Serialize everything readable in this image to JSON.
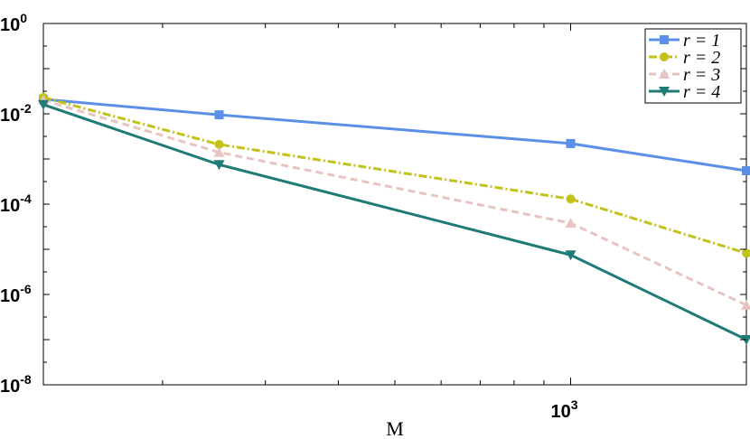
{
  "chart_data": {
    "type": "line",
    "title": "",
    "xlabel": "M",
    "ylabel": "",
    "xscale": "log",
    "yscale": "log",
    "xlim": [
      125,
      2000
    ],
    "ylim": [
      1e-08,
      1
    ],
    "x_ticks": [
      {
        "value": 1000,
        "base": "10",
        "exp": "3"
      }
    ],
    "y_ticks": [
      {
        "value": 1,
        "base": "10",
        "exp": "0"
      },
      {
        "value": 0.01,
        "base": "10",
        "exp": "-2"
      },
      {
        "value": 0.0001,
        "base": "10",
        "exp": "-4"
      },
      {
        "value": 1e-06,
        "base": "10",
        "exp": "-6"
      },
      {
        "value": 1e-08,
        "base": "10",
        "exp": "-8"
      }
    ],
    "x": [
      125,
      250,
      1000,
      2000
    ],
    "legend_position": "top-right",
    "grid": false,
    "series": [
      {
        "name": "r = 1",
        "color": "#5b8fe8",
        "dash": "solid",
        "marker": "square",
        "values": [
          0.021,
          0.0095,
          0.0022,
          0.00055
        ]
      },
      {
        "name": "r = 2",
        "color": "#c2c21a",
        "dash": "dashdot",
        "marker": "circle",
        "values": [
          0.023,
          0.0021,
          0.00013,
          8.2e-06
        ]
      },
      {
        "name": "r = 3",
        "color": "#e8c4c0",
        "dash": "dashed",
        "marker": "triangle-up",
        "values": [
          0.02,
          0.0014,
          3.8e-05,
          5.8e-07
        ]
      },
      {
        "name": "r = 4",
        "color": "#1e7b76",
        "dash": "solid",
        "marker": "triangle-down",
        "values": [
          0.016,
          0.00075,
          7.5e-06,
          1e-07
        ]
      }
    ]
  }
}
